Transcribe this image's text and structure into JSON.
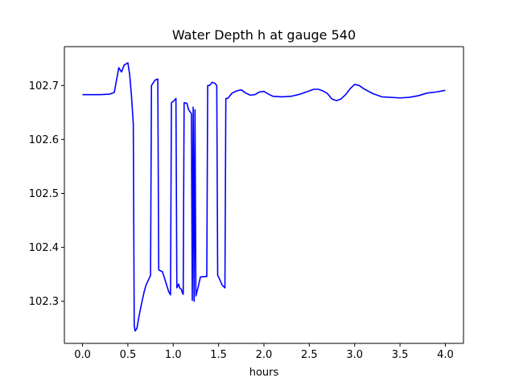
{
  "chart_data": {
    "type": "line",
    "title": "Water Depth h at gauge 540",
    "xlabel": "hours",
    "ylabel": "",
    "xlim": [
      -0.2,
      4.2
    ],
    "ylim": [
      102.222,
      102.772
    ],
    "xticks": [
      0.0,
      0.5,
      1.0,
      1.5,
      2.0,
      2.5,
      3.0,
      3.5,
      4.0
    ],
    "xtick_labels": [
      "0.0",
      "0.5",
      "1.0",
      "1.5",
      "2.0",
      "2.5",
      "3.0",
      "3.5",
      "4.0"
    ],
    "yticks": [
      102.3,
      102.4,
      102.5,
      102.6,
      102.7
    ],
    "ytick_labels": [
      "102.3",
      "102.4",
      "102.5",
      "102.6",
      "102.7"
    ],
    "grid": false,
    "series": [
      {
        "color": "#0000ff",
        "x": [
          0.0,
          0.1,
          0.2,
          0.3,
          0.35,
          0.4,
          0.43,
          0.46,
          0.5,
          0.52,
          0.54,
          0.56,
          0.57,
          0.58,
          0.6,
          0.62,
          0.65,
          0.68,
          0.7,
          0.75,
          0.76,
          0.8,
          0.83,
          0.84,
          0.88,
          0.9,
          0.95,
          0.97,
          0.98,
          1.01,
          1.03,
          1.04,
          1.06,
          1.07,
          1.09,
          1.1,
          1.11,
          1.12,
          1.15,
          1.17,
          1.2,
          1.21,
          1.22,
          1.23,
          1.24,
          1.25,
          1.28,
          1.3,
          1.35,
          1.37,
          1.38,
          1.4,
          1.43,
          1.46,
          1.48,
          1.49,
          1.5,
          1.54,
          1.57,
          1.58,
          1.6,
          1.65,
          1.7,
          1.75,
          1.8,
          1.85,
          1.9,
          1.95,
          2.0,
          2.05,
          2.1,
          2.2,
          2.3,
          2.4,
          2.5,
          2.55,
          2.6,
          2.65,
          2.7,
          2.75,
          2.8,
          2.85,
          2.9,
          2.95,
          3.0,
          3.05,
          3.1,
          3.2,
          3.3,
          3.5,
          3.6,
          3.7,
          3.8,
          3.9,
          4.0
        ],
        "y": [
          102.683,
          102.683,
          102.683,
          102.684,
          102.687,
          102.733,
          102.725,
          102.738,
          102.742,
          102.72,
          102.68,
          102.628,
          102.255,
          102.245,
          102.25,
          102.27,
          102.295,
          102.318,
          102.33,
          102.348,
          102.7,
          102.71,
          102.712,
          102.358,
          102.355,
          102.345,
          102.318,
          102.312,
          102.668,
          102.672,
          102.676,
          102.325,
          102.332,
          102.325,
          102.322,
          102.316,
          102.313,
          102.668,
          102.667,
          102.655,
          102.648,
          102.302,
          102.66,
          102.3,
          102.655,
          102.31,
          102.33,
          102.345,
          102.346,
          102.346,
          102.7,
          102.7,
          102.706,
          102.704,
          102.7,
          102.348,
          102.345,
          102.33,
          102.325,
          102.676,
          102.676,
          102.686,
          102.69,
          102.692,
          102.686,
          102.682,
          102.683,
          102.688,
          102.689,
          102.684,
          102.68,
          102.679,
          102.68,
          102.684,
          102.69,
          102.693,
          102.693,
          102.69,
          102.685,
          102.675,
          102.672,
          102.675,
          102.683,
          102.694,
          102.702,
          102.7,
          102.694,
          102.685,
          102.679,
          102.677,
          102.678,
          102.681,
          102.686,
          102.688,
          102.691
        ]
      }
    ]
  }
}
